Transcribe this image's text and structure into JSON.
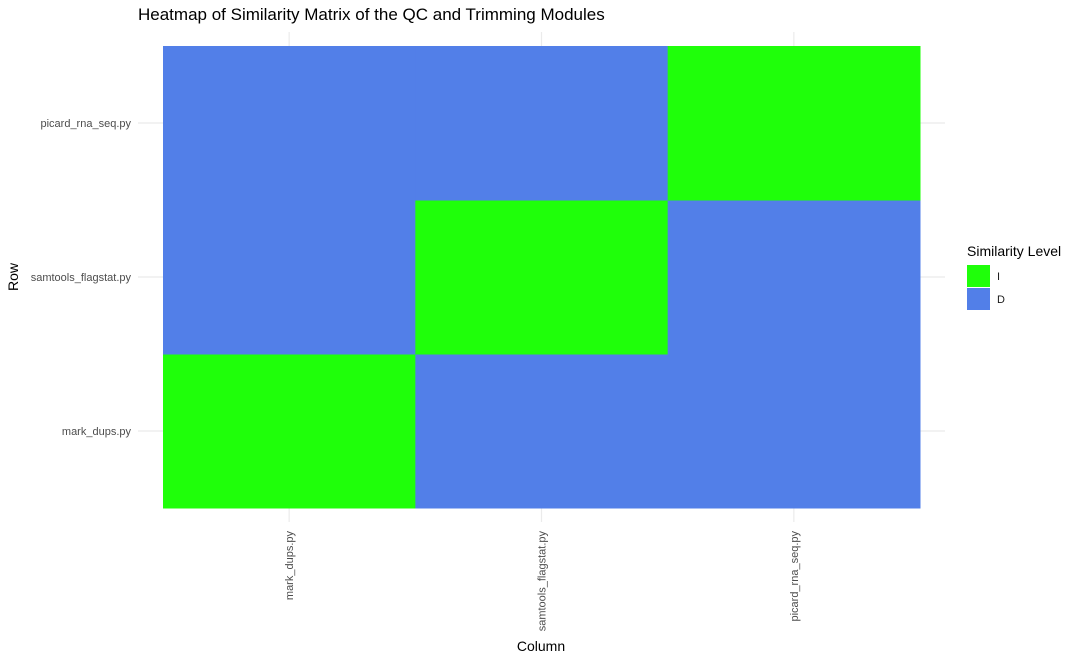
{
  "chart_data": {
    "type": "heatmap",
    "title": "Heatmap of Similarity Matrix of the QC and Trimming Modules",
    "xlabel": "Column",
    "ylabel": "Row",
    "x_categories": [
      "mark_dups.py",
      "samtools_flagstat.py",
      "picard_rna_seq.py"
    ],
    "y_categories": [
      "mark_dups.py",
      "samtools_flagstat.py",
      "picard_rna_seq.py"
    ],
    "cells": [
      {
        "x": "mark_dups.py",
        "y": "mark_dups.py",
        "value": "I"
      },
      {
        "x": "samtools_flagstat.py",
        "y": "mark_dups.py",
        "value": "D"
      },
      {
        "x": "picard_rna_seq.py",
        "y": "mark_dups.py",
        "value": "D"
      },
      {
        "x": "mark_dups.py",
        "y": "samtools_flagstat.py",
        "value": "D"
      },
      {
        "x": "samtools_flagstat.py",
        "y": "samtools_flagstat.py",
        "value": "I"
      },
      {
        "x": "picard_rna_seq.py",
        "y": "samtools_flagstat.py",
        "value": "D"
      },
      {
        "x": "mark_dups.py",
        "y": "picard_rna_seq.py",
        "value": "D"
      },
      {
        "x": "samtools_flagstat.py",
        "y": "picard_rna_seq.py",
        "value": "D"
      },
      {
        "x": "picard_rna_seq.py",
        "y": "picard_rna_seq.py",
        "value": "I"
      }
    ],
    "legend": {
      "title": "Similarity Level",
      "position": "right",
      "entries": [
        {
          "label": "I",
          "color": "#1fff0a"
        },
        {
          "label": "D",
          "color": "#527fe8"
        }
      ]
    },
    "grid": true
  }
}
